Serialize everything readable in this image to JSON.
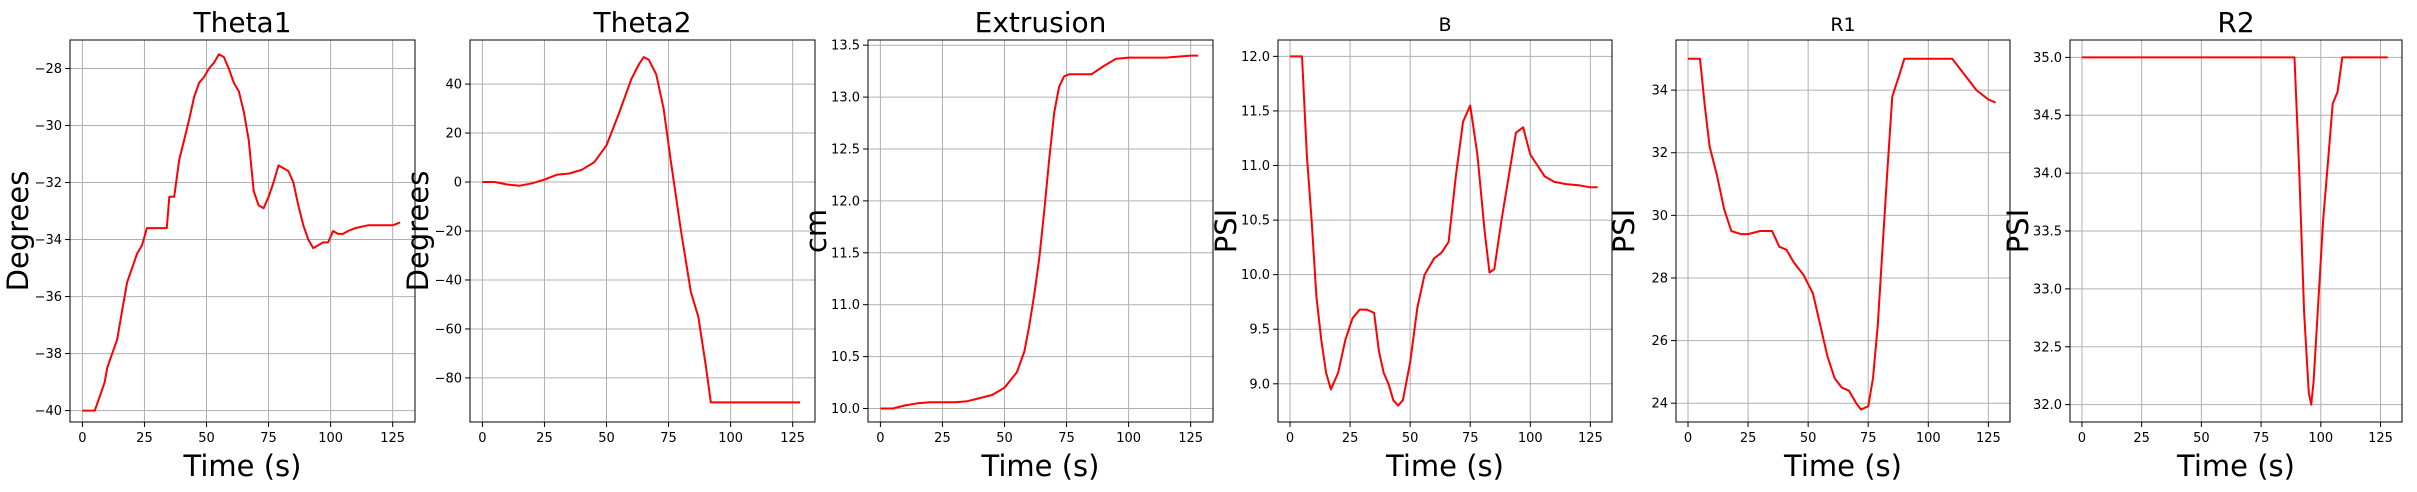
{
  "chart_data": [
    {
      "type": "line",
      "title": "Theta1",
      "title_size": "large",
      "xlabel": "Time (s)",
      "ylabel": "Degrees",
      "xlim": [
        -5,
        134
      ],
      "ylim": [
        -40.4,
        -27
      ],
      "xticks": [
        0,
        25,
        50,
        75,
        100,
        125
      ],
      "yticks": [
        -40,
        -38,
        -36,
        -34,
        -32,
        -30,
        -28
      ],
      "ytick_labels": [
        "−40",
        "−38",
        "−36",
        "−34",
        "−32",
        "−30",
        "−28"
      ],
      "grid": true,
      "series": [
        {
          "color": "#ff0000",
          "x": [
            0,
            5,
            7,
            9,
            10,
            12,
            14,
            16,
            18,
            20,
            22,
            24,
            26,
            28,
            30,
            32,
            34,
            35,
            37,
            39,
            41,
            43,
            45,
            47,
            49,
            51,
            53,
            55,
            57,
            59,
            61,
            63,
            65,
            67,
            69,
            71,
            73,
            75,
            77,
            79,
            81,
            83,
            85,
            87,
            89,
            91,
            93,
            95,
            97,
            99,
            101,
            103,
            105,
            107,
            110,
            115,
            120,
            125,
            128
          ],
          "y": [
            -40,
            -40,
            -39.5,
            -39,
            -38.5,
            -38,
            -37.5,
            -36.5,
            -35.5,
            -35,
            -34.5,
            -34.2,
            -33.6,
            -33.6,
            -33.6,
            -33.6,
            -33.6,
            -32.5,
            -32.5,
            -31.2,
            -30.5,
            -29.8,
            -29,
            -28.5,
            -28.3,
            -28,
            -27.8,
            -27.5,
            -27.6,
            -28,
            -28.5,
            -28.8,
            -29.5,
            -30.5,
            -32.3,
            -32.8,
            -32.9,
            -32.5,
            -32,
            -31.4,
            -31.5,
            -31.6,
            -32,
            -32.8,
            -33.5,
            -34,
            -34.3,
            -34.2,
            -34.1,
            -34.1,
            -33.7,
            -33.8,
            -33.8,
            -33.7,
            -33.6,
            -33.5,
            -33.5,
            -33.5,
            -33.4
          ]
        }
      ]
    },
    {
      "type": "line",
      "title": "Theta2",
      "title_size": "large",
      "xlabel": "",
      "ylabel": "Degrees",
      "xlim": [
        -5,
        134
      ],
      "ylim": [
        -98,
        58
      ],
      "xticks": [
        0,
        25,
        50,
        75,
        100,
        125
      ],
      "yticks": [
        -80,
        -60,
        -40,
        -20,
        0,
        20,
        40
      ],
      "ytick_labels": [
        "−80",
        "−60",
        "−40",
        "−20",
        "0",
        "20",
        "40"
      ],
      "grid": true,
      "series": [
        {
          "color": "#ff0000",
          "x": [
            0,
            5,
            10,
            15,
            20,
            25,
            30,
            35,
            40,
            45,
            50,
            55,
            60,
            63,
            65,
            67,
            70,
            73,
            76,
            80,
            84,
            87,
            90,
            92,
            95,
            100,
            110,
            120,
            128
          ],
          "y": [
            0,
            0,
            -1,
            -1.5,
            -0.5,
            1,
            3,
            3.5,
            5,
            8,
            15,
            28,
            42,
            48,
            51,
            50,
            44,
            30,
            8,
            -20,
            -45,
            -55,
            -75,
            -90,
            -90,
            -90,
            -90,
            -90,
            -90
          ]
        }
      ]
    },
    {
      "type": "line",
      "title": "Extrusion",
      "title_size": "large",
      "xlabel": "Time (s)",
      "ylabel": "cm",
      "xlim": [
        -5,
        134
      ],
      "ylim": [
        9.87,
        13.55
      ],
      "xticks": [
        0,
        25,
        50,
        75,
        100,
        125
      ],
      "yticks": [
        10,
        10.5,
        11,
        11.5,
        12,
        12.5,
        13,
        13.5
      ],
      "ytick_labels": [
        "10.0",
        "10.5",
        "11.0",
        "11.5",
        "12.0",
        "12.5",
        "13.0",
        "13.5"
      ],
      "grid": true,
      "series": [
        {
          "color": "#ff0000",
          "x": [
            0,
            5,
            10,
            15,
            20,
            25,
            30,
            35,
            40,
            45,
            50,
            55,
            58,
            60,
            62,
            64,
            66,
            68,
            70,
            72,
            74,
            76,
            78,
            80,
            85,
            90,
            95,
            100,
            105,
            110,
            115,
            120,
            125,
            128
          ],
          "y": [
            10,
            10,
            10.03,
            10.05,
            10.06,
            10.06,
            10.06,
            10.07,
            10.1,
            10.13,
            10.2,
            10.35,
            10.55,
            10.8,
            11.1,
            11.45,
            11.9,
            12.4,
            12.85,
            13.1,
            13.2,
            13.22,
            13.22,
            13.22,
            13.22,
            13.3,
            13.37,
            13.38,
            13.38,
            13.38,
            13.38,
            13.39,
            13.4,
            13.4
          ]
        }
      ]
    },
    {
      "type": "line",
      "title": "B",
      "title_size": "small",
      "xlabel": "Time (s)",
      "ylabel": "PSI",
      "xlim": [
        -5,
        134
      ],
      "ylim": [
        8.65,
        12.15
      ],
      "xticks": [
        0,
        25,
        50,
        75,
        100,
        125
      ],
      "yticks": [
        9,
        9.5,
        10,
        10.5,
        11,
        11.5,
        12
      ],
      "ytick_labels": [
        "9.0",
        "9.5",
        "10.0",
        "10.5",
        "11.0",
        "11.5",
        "12.0"
      ],
      "grid": true,
      "series": [
        {
          "color": "#ff0000",
          "x": [
            0,
            5,
            7,
            9,
            11,
            13,
            15,
            17,
            20,
            23,
            26,
            29,
            32,
            35,
            37,
            39,
            41,
            43,
            45,
            47,
            50,
            53,
            56,
            60,
            63,
            66,
            69,
            72,
            75,
            78,
            81,
            83,
            85,
            88,
            91,
            94,
            97,
            100,
            103,
            106,
            110,
            115,
            120,
            125,
            128
          ],
          "y": [
            12,
            12,
            11.1,
            10.5,
            9.8,
            9.4,
            9.1,
            8.95,
            9.1,
            9.4,
            9.6,
            9.68,
            9.68,
            9.65,
            9.3,
            9.1,
            9.0,
            8.85,
            8.8,
            8.85,
            9.2,
            9.7,
            10.0,
            10.15,
            10.2,
            10.3,
            10.9,
            11.4,
            11.55,
            11.1,
            10.4,
            10.02,
            10.05,
            10.5,
            10.9,
            11.3,
            11.35,
            11.1,
            11.0,
            10.9,
            10.85,
            10.83,
            10.82,
            10.8,
            10.8
          ]
        }
      ]
    },
    {
      "type": "line",
      "title": "R1",
      "title_size": "small",
      "xlabel": "Time (s)",
      "ylabel": "PSI",
      "xlim": [
        -5,
        134
      ],
      "ylim": [
        23.4,
        35.6
      ],
      "xticks": [
        0,
        25,
        50,
        75,
        100,
        125
      ],
      "yticks": [
        24,
        26,
        28,
        30,
        32,
        34
      ],
      "ytick_labels": [
        "24",
        "26",
        "28",
        "30",
        "32",
        "34"
      ],
      "grid": true,
      "series": [
        {
          "color": "#ff0000",
          "x": [
            0,
            5,
            7,
            9,
            12,
            15,
            18,
            22,
            25,
            30,
            35,
            38,
            41,
            44,
            48,
            52,
            55,
            58,
            61,
            64,
            67,
            70,
            72,
            75,
            77,
            79,
            81,
            83,
            85,
            88,
            90,
            93,
            96,
            100,
            105,
            110,
            115,
            120,
            125,
            128
          ],
          "y": [
            35,
            35,
            33.5,
            32.2,
            31.3,
            30.2,
            29.5,
            29.4,
            29.4,
            29.5,
            29.5,
            29.0,
            28.9,
            28.5,
            28.1,
            27.5,
            26.5,
            25.5,
            24.8,
            24.5,
            24.4,
            24.0,
            23.8,
            23.9,
            24.8,
            26.5,
            29.0,
            31.5,
            33.8,
            34.5,
            35,
            35,
            35,
            35,
            35,
            35,
            34.5,
            34.0,
            33.7,
            33.6
          ]
        }
      ]
    },
    {
      "type": "line",
      "title": "R2",
      "title_size": "large",
      "xlabel": "Time (s)",
      "ylabel": "PSI",
      "xlim": [
        -5,
        134
      ],
      "ylim": [
        31.85,
        35.15
      ],
      "xticks": [
        0,
        25,
        50,
        75,
        100,
        125
      ],
      "yticks": [
        32,
        32.5,
        33,
        33.5,
        34,
        34.5,
        35
      ],
      "ytick_labels": [
        "32.0",
        "32.5",
        "33.0",
        "33.5",
        "34.0",
        "34.5",
        "35.0"
      ],
      "grid": true,
      "series": [
        {
          "color": "#ff0000",
          "x": [
            0,
            20,
            40,
            60,
            80,
            89,
            91,
            93,
            95,
            96,
            97,
            99,
            101,
            103,
            105,
            107,
            109,
            111,
            113,
            115,
            120,
            125,
            128
          ],
          "y": [
            35,
            35,
            35,
            35,
            35,
            35,
            34.0,
            32.8,
            32.1,
            32.0,
            32.2,
            32.9,
            33.6,
            34.1,
            34.6,
            34.7,
            35,
            35,
            35,
            35,
            35,
            35,
            35
          ]
        }
      ]
    }
  ]
}
